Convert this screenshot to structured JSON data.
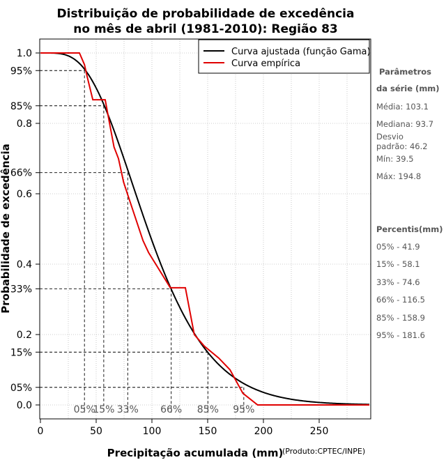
{
  "chart_data": {
    "type": "line",
    "title": [
      "Distribuição de probabilidade de excedência",
      "no mês de abril (1981-2010): Região 83"
    ],
    "xlabel": "Precipitação acumulada (mm)",
    "ylabel": "Probabilidade de excedência",
    "credit": "(Produto:CPTEC/INPE)",
    "xlim": [
      0,
      295
    ],
    "ylim": [
      0,
      1
    ],
    "grid": true,
    "x_ticks": [
      0,
      50,
      100,
      150,
      200,
      250
    ],
    "y_ticks": [
      {
        "v": 1.0,
        "label": "1.0"
      },
      {
        "v": 0.95,
        "label": "95%"
      },
      {
        "v": 0.85,
        "label": "85%"
      },
      {
        "v": 0.8,
        "label": "0.8"
      },
      {
        "v": 0.66,
        "label": "66%"
      },
      {
        "v": 0.6,
        "label": "0.6"
      },
      {
        "v": 0.4,
        "label": "0.4"
      },
      {
        "v": 0.33,
        "label": "33%"
      },
      {
        "v": 0.2,
        "label": "0.2"
      },
      {
        "v": 0.15,
        "label": "15%"
      },
      {
        "v": 0.05,
        "label": "05%"
      },
      {
        "v": 0.0,
        "label": "0.0"
      }
    ],
    "legend": {
      "position": "top-right",
      "entries": [
        {
          "name": "Curva ajustada (função Gama)",
          "color": "#000000"
        },
        {
          "name": "Curva empírica",
          "color": "#e00000"
        }
      ]
    },
    "series": [
      {
        "name": "Curva ajustada (função Gama)",
        "color": "#000000",
        "kind": "gamma",
        "mean": 103.1,
        "sd": 46.2
      },
      {
        "name": "Curva empírica",
        "color": "#e00000",
        "kind": "step",
        "points": [
          [
            0,
            1.0
          ],
          [
            35,
            1.0
          ],
          [
            39.5,
            0.967
          ],
          [
            41.9,
            0.933
          ],
          [
            47,
            0.867
          ],
          [
            58.1,
            0.867
          ],
          [
            62,
            0.8
          ],
          [
            66,
            0.733
          ],
          [
            70,
            0.7
          ],
          [
            74.6,
            0.633
          ],
          [
            78,
            0.6
          ],
          [
            92,
            0.467
          ],
          [
            97,
            0.433
          ],
          [
            116.5,
            0.333
          ],
          [
            120,
            0.333
          ],
          [
            130,
            0.333
          ],
          [
            138,
            0.2
          ],
          [
            147,
            0.167
          ],
          [
            160,
            0.133
          ],
          [
            170,
            0.1
          ],
          [
            181.6,
            0.033
          ],
          [
            194.8,
            0.0
          ],
          [
            295,
            0.0
          ]
        ]
      }
    ],
    "percentile_markers": [
      {
        "label": "05%",
        "x": 39.5,
        "y": 0.95
      },
      {
        "label": "15%",
        "x": 56.8,
        "y": 0.85
      },
      {
        "label": "33%",
        "x": 78.3,
        "y": 0.66
      },
      {
        "label": "66%",
        "x": 117.3,
        "y": 0.33
      },
      {
        "label": "85%",
        "x": 150.2,
        "y": 0.15
      },
      {
        "label": "95%",
        "x": 182.4,
        "y": 0.05
      }
    ]
  },
  "side_panel": {
    "params_title_1": "Parâmetros",
    "params_title_2": "da série (mm)",
    "media": "Média: 103.1",
    "mediana": "Mediana: 93.7",
    "desvio_1": "Desvio",
    "desvio_2": "padrão: 46.2",
    "min": "Mín: 39.5",
    "max": "Máx: 194.8",
    "percentis_title": "Percentis(mm)",
    "percentis": [
      "05% - 41.9",
      "15% - 58.1",
      "33% - 74.6",
      "66% - 116.5",
      "85% - 158.9",
      "95% - 181.6"
    ]
  }
}
